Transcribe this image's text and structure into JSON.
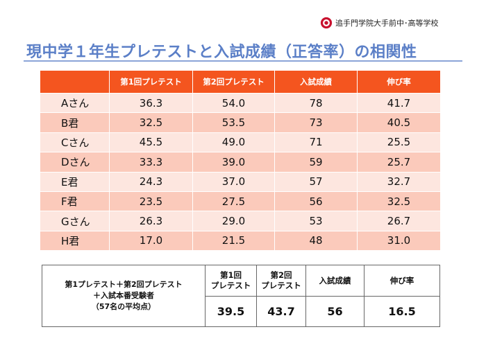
{
  "header": {
    "school_name": "追手門学院大手前中･高等学校",
    "logo_icon": "school-crest-icon",
    "title": "現中学１年生プレテストと入試成績（正答率）の相関性"
  },
  "score_table": {
    "columns": [
      "",
      "第1回プレテスト",
      "第2回プレテスト",
      "入試成績",
      "伸び率"
    ],
    "rows": [
      {
        "name": "Aさん",
        "pre1": "36.3",
        "pre2": "54.0",
        "exam": "78",
        "growth": "41.7"
      },
      {
        "name": "B君",
        "pre1": "32.5",
        "pre2": "53.5",
        "exam": "73",
        "growth": "40.5"
      },
      {
        "name": "Cさん",
        "pre1": "45.5",
        "pre2": "49.0",
        "exam": "71",
        "growth": "25.5"
      },
      {
        "name": "Dさん",
        "pre1": "33.3",
        "pre2": "39.0",
        "exam": "59",
        "growth": "25.7"
      },
      {
        "name": "E君",
        "pre1": "24.3",
        "pre2": "37.0",
        "exam": "57",
        "growth": "32.7"
      },
      {
        "name": "F君",
        "pre1": "23.5",
        "pre2": "27.5",
        "exam": "56",
        "growth": "32.5"
      },
      {
        "name": "Gさん",
        "pre1": "26.3",
        "pre2": "29.0",
        "exam": "53",
        "growth": "26.7"
      },
      {
        "name": "H君",
        "pre1": "17.0",
        "pre2": "21.5",
        "exam": "48",
        "growth": "31.0"
      }
    ],
    "colors": {
      "header": "#f4551f",
      "row_light": "#fde6df",
      "row_dark": "#fbcabb"
    }
  },
  "summary": {
    "description_lines": [
      "第1プレテスト＋第2回プレテスト",
      "＋入試本番受験者",
      "（57名の平均点）"
    ],
    "headers": [
      [
        "第1回",
        "プレテスト"
      ],
      [
        "第2回",
        "プレテスト"
      ],
      [
        "入試成績"
      ],
      [
        "伸び率"
      ]
    ],
    "values": [
      "39.5",
      "43.7",
      "56",
      "16.5"
    ]
  }
}
